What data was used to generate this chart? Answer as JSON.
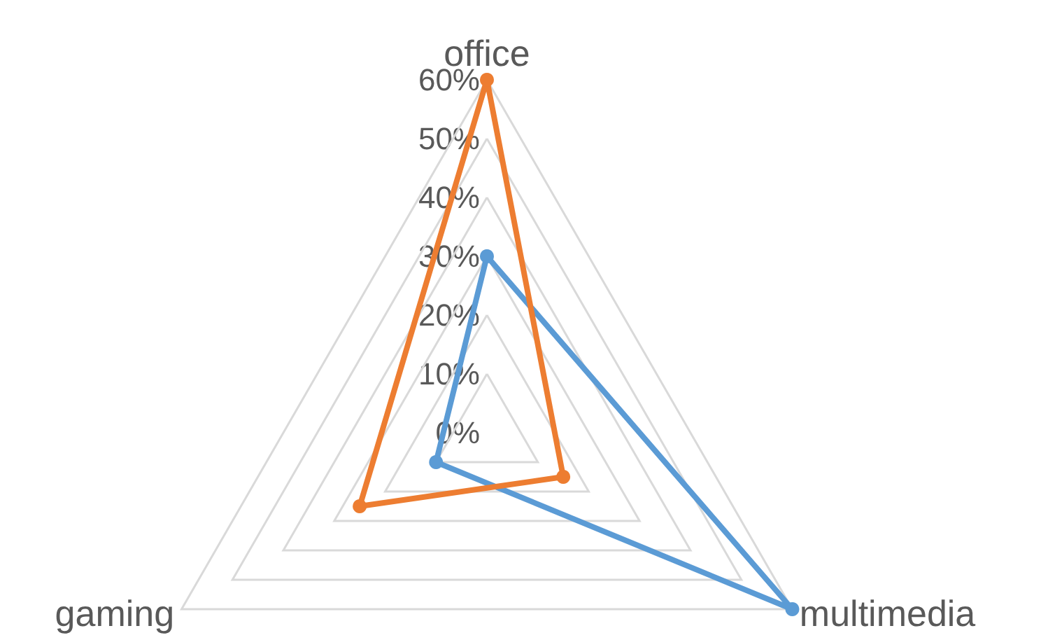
{
  "chart_data": {
    "type": "radar",
    "categories": [
      "office",
      "multimedia",
      "gaming"
    ],
    "series": [
      {
        "color": "#5b9bd5",
        "values": [
          30,
          60,
          10
        ]
      },
      {
        "color": "#ed7d31",
        "values": [
          60,
          15,
          25
        ]
      }
    ],
    "ylim": [
      0,
      60
    ],
    "yticks": [
      {
        "value": 0,
        "label": "0%"
      },
      {
        "value": 10,
        "label": "10%"
      },
      {
        "value": 20,
        "label": "20%"
      },
      {
        "value": 30,
        "label": "30%"
      },
      {
        "value": 40,
        "label": "40%"
      },
      {
        "value": 50,
        "label": "50%"
      },
      {
        "value": 60,
        "label": "60%"
      }
    ],
    "grid": true,
    "marker": "circle",
    "line_style": "solid"
  }
}
